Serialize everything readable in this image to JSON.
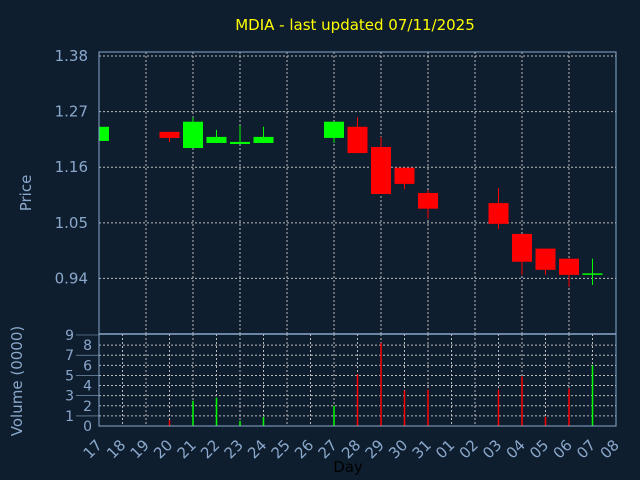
{
  "chart_data": {
    "type": "candlestick",
    "title": "MDIA - last updated 07/11/2025",
    "xlabel": "Day",
    "ylabel": "Price",
    "volume_label": "Volume (0000)",
    "x_tick_labels": [
      "17",
      "18",
      "19",
      "20",
      "21",
      "22",
      "23",
      "24",
      "25",
      "26",
      "27",
      "28",
      "29",
      "30",
      "31",
      "01",
      "02",
      "03",
      "04",
      "05",
      "06",
      "07",
      "08"
    ],
    "y_ticks": [
      1.38,
      1.27,
      1.16,
      1.05,
      0.94
    ],
    "ylim": [
      0.83,
      1.388
    ],
    "volume_ticks": [
      0,
      1,
      2,
      3,
      4,
      5,
      6,
      7,
      8,
      9
    ],
    "volume_ylim": [
      0,
      9
    ],
    "grid": true,
    "colors": {
      "up": "#00ff00",
      "down": "#ff0000",
      "background": "#0f1e2e",
      "axis": "#8aa8cc",
      "title": "#ffff00"
    },
    "candles": [
      {
        "day": "17",
        "open": 1.212,
        "high": 1.24,
        "low": 1.212,
        "close": 1.24,
        "volume": 0
      },
      {
        "day": "20",
        "open": 1.23,
        "high": 1.23,
        "low": 1.21,
        "close": 1.218,
        "volume": 0.6
      },
      {
        "day": "21",
        "open": 1.198,
        "high": 1.259,
        "low": 1.198,
        "close": 1.25,
        "volume": 2.5
      },
      {
        "day": "22",
        "open": 1.208,
        "high": 1.234,
        "low": 1.208,
        "close": 1.22,
        "volume": 2.8
      },
      {
        "day": "23",
        "open": 1.206,
        "high": 1.242,
        "low": 1.206,
        "close": 1.21,
        "volume": 0.5
      },
      {
        "day": "24",
        "open": 1.208,
        "high": 1.24,
        "low": 1.208,
        "close": 1.22,
        "volume": 0.9
      },
      {
        "day": "27",
        "open": 1.218,
        "high": 1.25,
        "low": 1.208,
        "close": 1.25,
        "volume": 2.0
      },
      {
        "day": "28",
        "open": 1.24,
        "high": 1.259,
        "low": 1.188,
        "close": 1.188,
        "volume": 5.1
      },
      {
        "day": "29",
        "open": 1.2,
        "high": 1.22,
        "low": 1.107,
        "close": 1.107,
        "volume": 8.2
      },
      {
        "day": "30",
        "open": 1.159,
        "high": 1.159,
        "low": 1.117,
        "close": 1.127,
        "volume": 3.5
      },
      {
        "day": "31",
        "open": 1.109,
        "high": 1.115,
        "low": 1.058,
        "close": 1.078,
        "volume": 3.6
      },
      {
        "day": "03",
        "open": 1.089,
        "high": 1.119,
        "low": 1.038,
        "close": 1.048,
        "volume": 3.6
      },
      {
        "day": "04",
        "open": 1.028,
        "high": 1.028,
        "low": 0.947,
        "close": 0.973,
        "volume": 4.9
      },
      {
        "day": "05",
        "open": 0.999,
        "high": 0.999,
        "low": 0.947,
        "close": 0.957,
        "volume": 0.9
      },
      {
        "day": "06",
        "open": 0.979,
        "high": 0.979,
        "low": 0.923,
        "close": 0.947,
        "volume": 3.7
      },
      {
        "day": "07",
        "open": 0.948,
        "high": 0.979,
        "low": 0.927,
        "close": 0.95,
        "volume": 6.0
      }
    ]
  }
}
